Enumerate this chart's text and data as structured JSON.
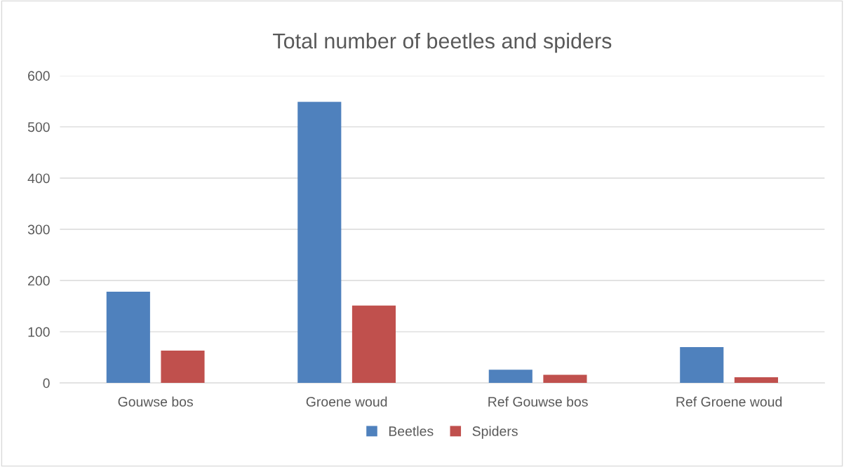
{
  "chart_data": {
    "type": "bar",
    "title": "Total number of beetles and spiders",
    "categories": [
      "Gouwse bos",
      "Groene woud",
      "Ref Gouwse bos",
      "Ref Groene woud"
    ],
    "series": [
      {
        "name": "Beetles",
        "color": "#4f81bd",
        "values": [
          178,
          549,
          26,
          70
        ]
      },
      {
        "name": "Spiders",
        "color": "#c0504d",
        "values": [
          63,
          151,
          16,
          11
        ]
      }
    ],
    "ylim": [
      0,
      600
    ],
    "yticks": [
      0,
      100,
      200,
      300,
      400,
      500,
      600
    ],
    "grid": "y",
    "legend": "bottom"
  }
}
